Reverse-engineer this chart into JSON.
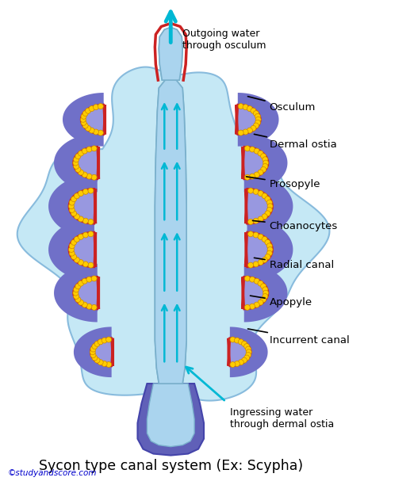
{
  "body_color": "#c5e8f5",
  "body_edge": "#88bbdd",
  "spongocoel_color": "#aad4ee",
  "spongocoel_edge": "#7ab0cc",
  "radial_outer_color": "#7070c8",
  "radial_inner_color": "#9898e0",
  "red_lining": "#cc2222",
  "choanocyte_color": "#ffcc00",
  "choanocyte_edge": "#cc8800",
  "stalk_color": "#6060b8",
  "stalk_edge": "#4444aa",
  "arrow_color": "#00b8d4",
  "osculum_top_color": "#aad4ee",
  "title": "Sycon type canal system (Ex: Scypha)",
  "title_fontsize": 12.5,
  "watermark": "©studyandscore.com",
  "watermark_color": "#0000cc",
  "label_fontsize": 9.5,
  "outgoing_text": "Outgoing water\nthrough osculum",
  "ingressing_text": "Ingressing water\nthrough dermal ostia",
  "labels": [
    "Osculum",
    "Dermal ostia",
    "Prosopyle",
    "Choanocytes",
    "Radial canal",
    "Apopyle",
    "Incurrent canal"
  ]
}
